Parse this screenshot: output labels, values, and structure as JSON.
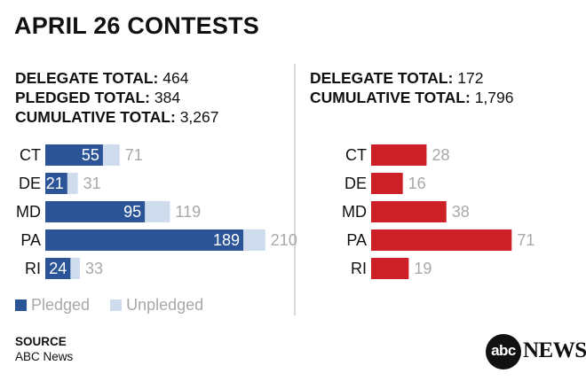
{
  "title": "APRIL 26 CONTESTS",
  "left": {
    "stats": [
      {
        "label": "DELEGATE TOTAL:",
        "value": "464"
      },
      {
        "label": "PLEDGED TOTAL:",
        "value": "384"
      },
      {
        "label": "CUMULATIVE TOTAL:",
        "value": "3,267"
      }
    ]
  },
  "right": {
    "stats": [
      {
        "label": "DELEGATE TOTAL:",
        "value": "172"
      },
      {
        "label": "CUMULATIVE TOTAL:",
        "value": "1,796"
      }
    ]
  },
  "legend": [
    {
      "label": "Pledged",
      "color": "#2b5597"
    },
    {
      "label": "Unpledged",
      "color": "#cfdcee"
    }
  ],
  "source": {
    "heading": "SOURCE",
    "text": "ABC News"
  },
  "logo": {
    "mark": "abc",
    "word": "NEWS"
  },
  "colors": {
    "pledged": "#2b5597",
    "unpledged": "#cfdcee",
    "republican": "#cc1f26",
    "label_out": "#a8a8a8"
  },
  "chart_data": [
    {
      "type": "bar",
      "categories": [
        "CT",
        "DE",
        "MD",
        "PA",
        "RI"
      ],
      "series": [
        {
          "name": "Pledged",
          "values": [
            55,
            21,
            95,
            189,
            24
          ]
        },
        {
          "name": "Unpledged",
          "values": [
            16,
            10,
            24,
            21,
            9
          ]
        }
      ],
      "totals": [
        71,
        31,
        119,
        210,
        33
      ],
      "stacked": true,
      "orientation": "horizontal",
      "legend": "bottom-left",
      "grid": false
    },
    {
      "type": "bar",
      "categories": [
        "CT",
        "DE",
        "MD",
        "PA",
        "RI"
      ],
      "values": [
        28,
        16,
        38,
        71,
        19
      ],
      "orientation": "horizontal",
      "grid": false
    }
  ]
}
